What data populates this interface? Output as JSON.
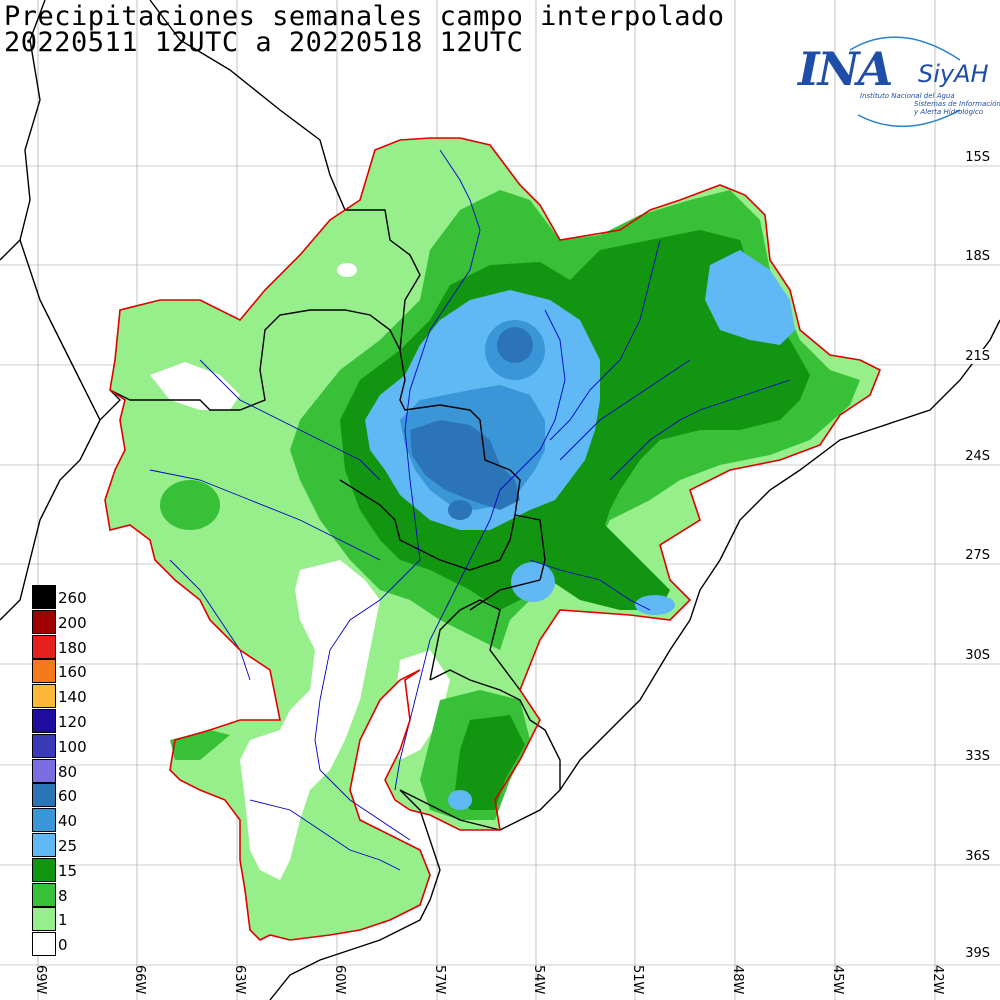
{
  "title": {
    "line1": "Precipitaciones semanales campo interpolado",
    "line2": "20220511 12UTC a 20220518 12UTC"
  },
  "logo": {
    "main": "INA",
    "product": "SiyAH",
    "institute": "Instituto Nacional del Agua",
    "subtitle1": "Sistemas de Información",
    "subtitle2": "y Alerta Hidrológico"
  },
  "lat_labels": [
    "15S",
    "18S",
    "21S",
    "24S",
    "27S",
    "30S",
    "33S",
    "36S",
    "39S"
  ],
  "lon_labels": [
    "69W",
    "66W",
    "63W",
    "60W",
    "57W",
    "54W",
    "51W",
    "48W",
    "45W",
    "42W"
  ],
  "legend": [
    {
      "label": "260",
      "color": "#000000"
    },
    {
      "label": "200",
      "color": "#a00000"
    },
    {
      "label": "180",
      "color": "#e6201e"
    },
    {
      "label": "160",
      "color": "#f57a1c"
    },
    {
      "label": "140",
      "color": "#fbb83a"
    },
    {
      "label": "120",
      "color": "#1f0ca0"
    },
    {
      "label": "100",
      "color": "#3a3ab8"
    },
    {
      "label": "80",
      "color": "#7a6ee0"
    },
    {
      "label": "60",
      "color": "#2c74b8"
    },
    {
      "label": "40",
      "color": "#3b96d8"
    },
    {
      "label": "25",
      "color": "#60b8f4"
    },
    {
      "label": "15",
      "color": "#129612"
    },
    {
      "label": "8",
      "color": "#38c038"
    },
    {
      "label": "1",
      "color": "#96ef8a"
    },
    {
      "label": "0",
      "color": "#ffffff"
    }
  ],
  "colors": {
    "basin_outline": "#e00000",
    "rivers": "#0000c8",
    "borders": "#000000",
    "grid": "#888888"
  }
}
